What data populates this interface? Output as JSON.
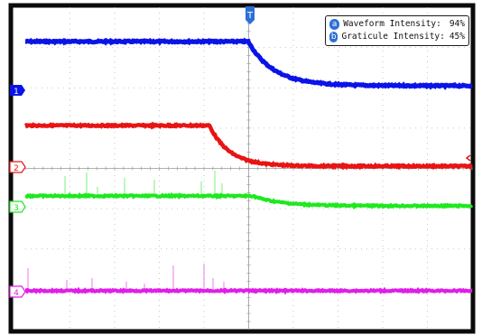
{
  "trigger": {
    "label": "T"
  },
  "channels": [
    {
      "number": "1",
      "color": "#0a14e8"
    },
    {
      "number": "2",
      "color": "#e81414"
    },
    {
      "number": "3",
      "color": "#1ee81e"
    },
    {
      "number": "4",
      "color": "#e01ee8"
    }
  ],
  "intensity_panel": {
    "waveform": {
      "knob": "a",
      "label": "Waveform Intensity:",
      "value": "94%"
    },
    "graticule": {
      "knob": "b",
      "label": "Graticule Intensity:",
      "value": "45%"
    }
  },
  "colors": {
    "frame": "#0b0b0b",
    "background": "#ffffff",
    "grid": "#b9b9b9",
    "trigger": "#2c6fd6"
  }
}
